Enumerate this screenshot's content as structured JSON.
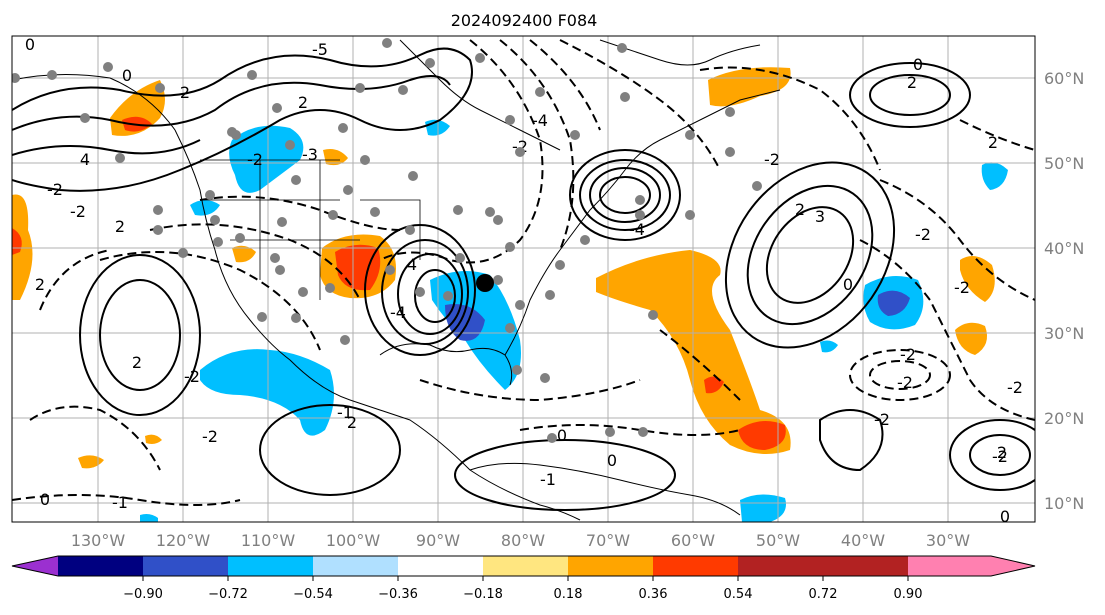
{
  "title": "2024092400 F084",
  "lon_labels": [
    "130°W",
    "120°W",
    "110°W",
    "100°W",
    "90°W",
    "80°W",
    "70°W",
    "60°W",
    "50°W",
    "40°W",
    "30°W"
  ],
  "lat_labels": [
    "60°N",
    "50°N",
    "40°N",
    "30°N",
    "20°N",
    "10°N"
  ],
  "colorbar": {
    "ticks": [
      "−0.90",
      "−0.72",
      "−0.54",
      "−0.36",
      "−0.18",
      "0.18",
      "0.36",
      "0.54",
      "0.72",
      "0.90"
    ],
    "colors": [
      "#9b30d0",
      "#000080",
      "#3050c8",
      "#00bfff",
      "#b0e0ff",
      "#ffffff",
      "#ffe680",
      "#ffa500",
      "#ff3a00",
      "#b22222",
      "#ff80b0"
    ]
  },
  "contour_labels": [
    "0",
    "2",
    "4",
    "-2",
    "-4",
    "2",
    "0",
    "-2",
    "4",
    "-2",
    "2",
    "3",
    "2",
    "-2",
    "0",
    "2",
    "-2",
    "-2",
    "-4",
    "-2",
    "-2",
    "-2",
    "2",
    "-2",
    "2",
    "-1",
    "0",
    "-1",
    "0",
    "2",
    "-2",
    "-2",
    "0",
    "2",
    "2",
    "0",
    "-2",
    "-1",
    "0",
    "-4",
    "-2",
    "-3",
    "-5"
  ],
  "colors": {
    "ocean_bg": "#ffffff",
    "grid": "#b0b0b0",
    "coast": "#000000",
    "marker": "#808080",
    "storm_dot": "#000000"
  }
}
